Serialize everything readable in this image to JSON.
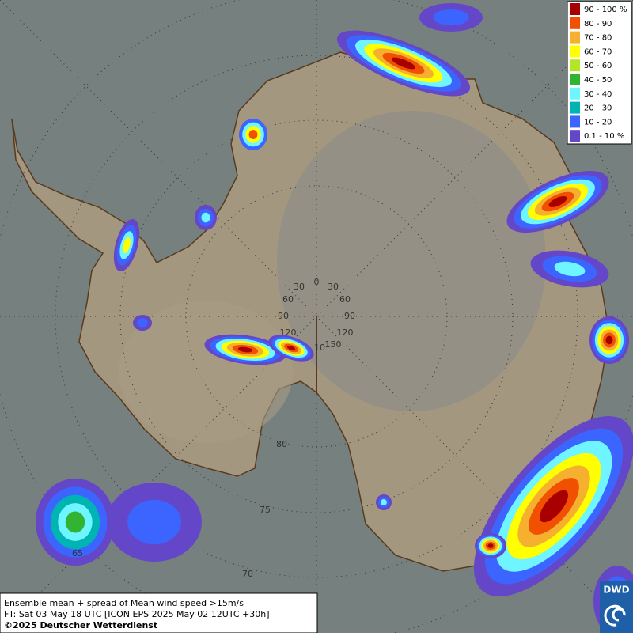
{
  "legend": {
    "entries": [
      {
        "label": "90 - 100 %",
        "color": "#a80000"
      },
      {
        "label": "80 - 90",
        "color": "#f05000"
      },
      {
        "label": "70 - 80",
        "color": "#f5b030"
      },
      {
        "label": "60 - 70",
        "color": "#ffff00"
      },
      {
        "label": "50 - 60",
        "color": "#b4e628"
      },
      {
        "label": "40 - 50",
        "color": "#32b432"
      },
      {
        "label": "30 - 40",
        "color": "#6ef5ff"
      },
      {
        "label": "20 - 30",
        "color": "#00b4b4"
      },
      {
        "label": "10 - 20",
        "color": "#3c64ff"
      },
      {
        "label": "0.1 - 10 %",
        "color": "#6446c8"
      }
    ]
  },
  "grid_labels": {
    "longitude": [
      "30",
      "0",
      "30",
      "60",
      "60",
      "90",
      "90",
      "120",
      "120",
      "150",
      "10"
    ],
    "latitude": [
      "80",
      "75",
      "70",
      "65"
    ]
  },
  "caption": {
    "line1": "Ensemble mean + spread of Mean wind speed >15m/s",
    "line2": "FT: Sat 03 May 18 UTC [ICON EPS 2025 May 02 12UTC +30h]",
    "line3": "©2025 Deutscher Wetterdienst"
  },
  "logo": "DWD"
}
